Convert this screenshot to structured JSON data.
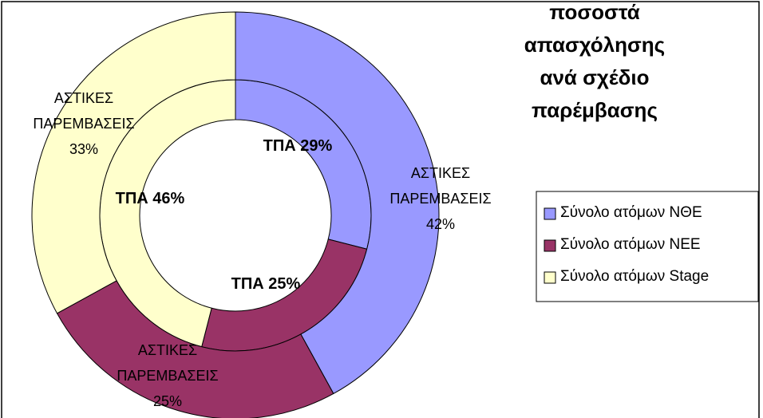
{
  "chart_data": {
    "type": "doughnut",
    "title": "ποσοστά απασχόλησης\nανά σχέδιο παρέμβασης",
    "categories": [
      "Σύνολο ατόμων ΝΘΕ",
      "Σύνολο ατόμων ΝΕΕ",
      "Σύνολο ατόμων Stage"
    ],
    "colors": [
      "#9999ff",
      "#993366",
      "#ffffcc"
    ],
    "series": [
      {
        "values": [
          29,
          25,
          46
        ],
        "value_labels": [
          "ΤΠΑ 29%",
          "ΤΠΑ 25%",
          "ΤΠΑ 46%"
        ]
      },
      {
        "values": [
          42,
          25,
          33
        ],
        "value_labels": [
          "ΑΣΤΙΚΕΣ\nΠΑΡΕΜΒΑΣΕΙΣ\n42%",
          "ΑΣΤΙΚΕΣ\nΠΑΡΕΜΒΑΣΕΙΣ\n25%",
          "ΑΣΤΙΚΕΣ\nΠΑΡΕΜΒΑΣΕΙΣ\n33%"
        ]
      }
    ],
    "legend": "right"
  }
}
